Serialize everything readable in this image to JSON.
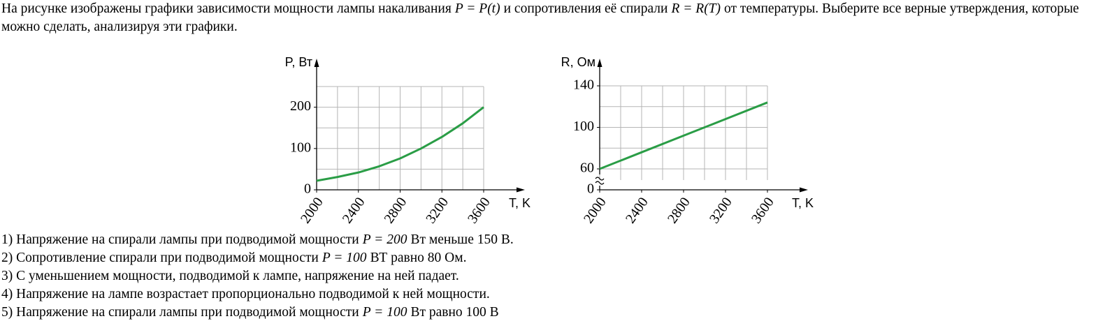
{
  "question": [
    {
      "text": "На рисунке изображены графики зависимости мощности лампы накаливания"
    },
    {
      "math": "P = P(t)"
    },
    {
      "text": "и сопротивления её спирали"
    },
    {
      "math": "R = R(T)"
    },
    {
      "text": "от температуры. Выберите все верные утверждения, которые можно сделать, анализируя эти графики."
    }
  ],
  "chart_data": [
    {
      "type": "line",
      "ylabel": "P, Вт",
      "xlabel": "T, K",
      "x": [
        2000,
        2200,
        2400,
        2600,
        2800,
        3000,
        3200,
        3400,
        3600
      ],
      "series": [
        {
          "color": "#2a9d46",
          "values": [
            22,
            31,
            42,
            57,
            76,
            100,
            128,
            161,
            200
          ]
        }
      ],
      "xlim": [
        2000,
        3600
      ],
      "xticks": [
        2000,
        2400,
        2800,
        3200,
        3600
      ],
      "x_grid": [
        2000,
        2200,
        2400,
        2600,
        2800,
        3000,
        3200,
        3400,
        3600
      ],
      "ylim": [
        0,
        250
      ],
      "yticks": [
        0,
        100,
        200
      ],
      "y_grid": [
        0,
        50,
        100,
        150,
        200,
        250
      ],
      "axis_break": false
    },
    {
      "type": "line",
      "ylabel": "R, Ом",
      "xlabel": "T, K",
      "x": [
        2000,
        2400,
        2800,
        3200,
        3600
      ],
      "series": [
        {
          "color": "#2a9d46",
          "values": [
            60,
            76,
            92,
            108,
            124
          ]
        }
      ],
      "xlim": [
        2000,
        3600
      ],
      "xticks": [
        2000,
        2400,
        2800,
        3200,
        3600
      ],
      "x_grid": [
        2000,
        2200,
        2400,
        2600,
        2800,
        3000,
        3200,
        3400,
        3600
      ],
      "ylim": [
        60,
        140
      ],
      "yticks": [
        0,
        60,
        100,
        140
      ],
      "y_grid": [
        60,
        80,
        100,
        120,
        140
      ],
      "axis_break": true
    }
  ],
  "options": [
    [
      {
        "text": "1) Напряжение на спирали лампы при подводимой мощности"
      },
      {
        "math": "P = 200"
      },
      {
        "text": "Вт меньше 150 В."
      }
    ],
    [
      {
        "text": "2) Сопротивление спирали при подводимой мощности"
      },
      {
        "math": "P = 100"
      },
      {
        "text": "ВТ равно 80 Ом."
      }
    ],
    [
      {
        "text": "3) С уменьшением мощности, подводимой к лампе, напряжение на ней падает."
      }
    ],
    [
      {
        "text": "4) Напряжение на лампе возрастает пропорционально подводимой к ней мощности."
      }
    ],
    [
      {
        "text": "5) Напряжение на спирали лампы при подводимой мощности"
      },
      {
        "math": "P = 100"
      },
      {
        "text": "Вт равно 100 В"
      }
    ]
  ]
}
